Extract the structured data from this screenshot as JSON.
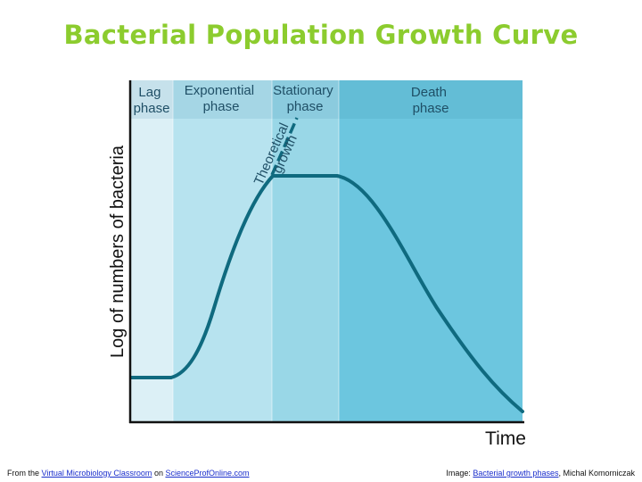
{
  "title": "Bacterial Population Growth Curve",
  "colors": {
    "title": "#8ccc2e",
    "lag_bg": "#dcf0f6",
    "exponential_bg": "#b7e3ef",
    "stationary_bg": "#99d7e7",
    "death_bg": "#6cc6df",
    "curve": "#0f6a7f",
    "axis": "#111111"
  },
  "diagram": {
    "y_axis_label": "Log of numbers of bacteria",
    "x_axis_label": "Time",
    "phases": [
      {
        "line1": "Lag",
        "line2": "phase"
      },
      {
        "line1": "Exponential",
        "line2": "phase"
      },
      {
        "line1": "Stationary",
        "line2": "phase"
      },
      {
        "line1": "Death",
        "line2": "phase"
      }
    ],
    "annotation": {
      "line1": "Theoretical",
      "line2": "growth"
    }
  },
  "footer": {
    "left_prefix": "From the",
    "left_link1": "Virtual Microbiology Classroom",
    "left_middle": "on",
    "left_link2": "ScienceProfOnline.com",
    "right_prefix": "Image:",
    "right_link": "Bacterial growth phases",
    "right_suffix": ", Michal Komorniczak"
  }
}
